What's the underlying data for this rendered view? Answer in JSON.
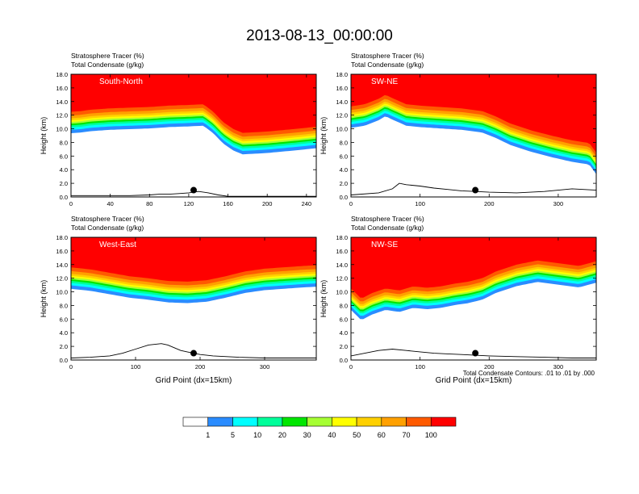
{
  "title": "2013-08-13_00:00:00",
  "note": "Total Condensate Contours: .01 to .01 by .000",
  "palette": [
    "#ffffff",
    "#2a8cff",
    "#00ffff",
    "#00ff9a",
    "#00e600",
    "#a6ff33",
    "#ffff00",
    "#ffd000",
    "#ffa000",
    "#ff5a00",
    "#ff0000"
  ],
  "colorbar": {
    "labels": [
      "1",
      "5",
      "10",
      "20",
      "30",
      "40",
      "50",
      "60",
      "70",
      "100"
    ]
  },
  "chart_data": [
    {
      "type": "heatmap",
      "label": "South-North",
      "subtitle1": "Stratosphere Tracer   (%)",
      "subtitle2": "Total Condensate   (g/kg)",
      "ylabel": "Height (km)",
      "xlabel": "",
      "xlim": [
        0,
        250
      ],
      "ylim": [
        0,
        18
      ],
      "xticks": [
        "0",
        "40",
        "80",
        "120",
        "160",
        "200",
        "240"
      ],
      "yticks": [
        "0.0",
        "2.0",
        "4.0",
        "6.0",
        "8.0",
        "10.0",
        "12.0",
        "14.0",
        "16.0",
        "18.0"
      ],
      "tracer_boundary": {
        "x": [
          0,
          10,
          20,
          40,
          60,
          80,
          100,
          120,
          135,
          145,
          155,
          165,
          175,
          200,
          230,
          250
        ],
        "z": [
          12.5,
          12.6,
          12.8,
          13.0,
          13.1,
          13.2,
          13.4,
          13.5,
          13.6,
          12.5,
          11.0,
          10.0,
          9.4,
          9.6,
          10.0,
          10.3
        ]
      },
      "terrain": {
        "x": [
          0,
          20,
          40,
          60,
          80,
          90,
          100,
          110,
          120,
          125,
          130,
          140,
          150,
          160,
          200,
          250
        ],
        "z": [
          0.2,
          0.2,
          0.2,
          0.2,
          0.3,
          0.4,
          0.4,
          0.5,
          0.6,
          0.7,
          0.8,
          0.6,
          0.3,
          0.1,
          0.1,
          0.1
        ]
      },
      "marker": [
        125,
        1.0
      ]
    },
    {
      "type": "heatmap",
      "label": "SW-NE",
      "subtitle1": "Stratosphere Tracer   (%)",
      "subtitle2": "Total Condensate   (g/kg)",
      "ylabel": "Height (km)",
      "xlabel": "",
      "xlim": [
        0,
        355
      ],
      "ylim": [
        0,
        18
      ],
      "xticks": [
        "0",
        "100",
        "200",
        "300"
      ],
      "yticks": [
        "0.0",
        "2.0",
        "4.0",
        "6.0",
        "8.0",
        "10.0",
        "12.0",
        "14.0",
        "16.0",
        "18.0"
      ],
      "tracer_boundary": {
        "x": [
          0,
          20,
          40,
          50,
          60,
          80,
          100,
          130,
          160,
          190,
          210,
          230,
          260,
          290,
          320,
          345,
          355
        ],
        "z": [
          13.3,
          13.6,
          14.4,
          15.0,
          14.5,
          13.6,
          13.4,
          13.2,
          13.0,
          12.6,
          11.8,
          10.8,
          9.8,
          9.0,
          8.3,
          7.9,
          6.5
        ]
      },
      "terrain": {
        "x": [
          0,
          40,
          60,
          70,
          80,
          100,
          120,
          140,
          160,
          180,
          200,
          240,
          280,
          320,
          355
        ],
        "z": [
          0.3,
          0.6,
          1.2,
          2.0,
          1.8,
          1.6,
          1.3,
          1.1,
          0.9,
          0.8,
          0.7,
          0.6,
          0.8,
          1.2,
          1.0
        ]
      },
      "marker": [
        180,
        1.0
      ]
    },
    {
      "type": "heatmap",
      "label": "West-East",
      "subtitle1": "Stratosphere Tracer   (%)",
      "subtitle2": "Total Condensate   (g/kg)",
      "ylabel": "Height (km)",
      "xlabel": "Grid Point (dx=15km)",
      "xlim": [
        0,
        380
      ],
      "ylim": [
        0,
        18
      ],
      "xticks": [
        "0",
        "100",
        "200",
        "300"
      ],
      "yticks": [
        "0.0",
        "2.0",
        "4.0",
        "6.0",
        "8.0",
        "10.0",
        "12.0",
        "14.0",
        "16.0",
        "18.0"
      ],
      "tracer_boundary": {
        "x": [
          0,
          30,
          60,
          90,
          120,
          150,
          180,
          210,
          240,
          270,
          300,
          330,
          360,
          380
        ],
        "z": [
          13.6,
          13.3,
          12.8,
          12.3,
          12.0,
          11.6,
          11.5,
          11.7,
          12.3,
          13.0,
          13.4,
          13.6,
          13.8,
          13.9
        ]
      },
      "terrain": {
        "x": [
          0,
          30,
          60,
          80,
          100,
          120,
          140,
          150,
          160,
          170,
          180,
          190,
          200,
          220,
          260,
          300,
          340,
          380
        ],
        "z": [
          0.3,
          0.4,
          0.6,
          1.0,
          1.6,
          2.2,
          2.4,
          2.2,
          1.8,
          1.4,
          1.2,
          1.0,
          0.8,
          0.6,
          0.4,
          0.3,
          0.3,
          0.3
        ]
      },
      "marker": [
        190,
        1.0
      ]
    },
    {
      "type": "heatmap",
      "label": "NW-SE",
      "subtitle1": "Stratosphere Tracer   (%)",
      "subtitle2": "Total Condensate   (g/kg)",
      "ylabel": "Height (km)",
      "xlabel": "Grid Point (dx=15km)",
      "xlim": [
        0,
        355
      ],
      "ylim": [
        0,
        18
      ],
      "xticks": [
        "0",
        "100",
        "200",
        "300"
      ],
      "yticks": [
        "0.0",
        "2.0",
        "4.0",
        "6.0",
        "8.0",
        "10.0",
        "12.0",
        "14.0",
        "16.0",
        "18.0"
      ],
      "tracer_boundary": {
        "x": [
          0,
          15,
          30,
          50,
          70,
          90,
          110,
          130,
          150,
          170,
          190,
          210,
          240,
          270,
          300,
          330,
          355
        ],
        "z": [
          10.5,
          9.0,
          9.8,
          10.5,
          10.2,
          10.8,
          10.6,
          10.8,
          11.2,
          11.5,
          12.0,
          13.0,
          14.0,
          14.6,
          14.2,
          13.8,
          14.5
        ]
      },
      "terrain": {
        "x": [
          0,
          20,
          40,
          60,
          80,
          100,
          120,
          140,
          160,
          180,
          200,
          240,
          280,
          320,
          355
        ],
        "z": [
          0.6,
          1.0,
          1.4,
          1.6,
          1.4,
          1.2,
          1.0,
          0.9,
          0.8,
          0.7,
          0.6,
          0.5,
          0.4,
          0.3,
          0.3
        ]
      },
      "marker": [
        180,
        1.0
      ]
    }
  ]
}
